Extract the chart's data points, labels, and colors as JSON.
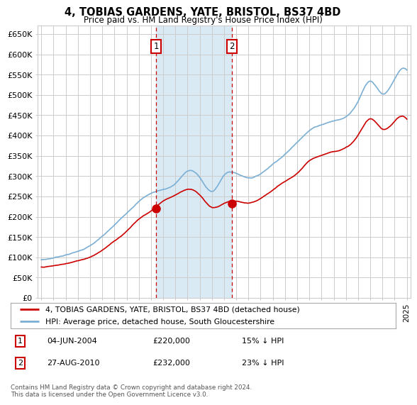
{
  "title": "4, TOBIAS GARDENS, YATE, BRISTOL, BS37 4BD",
  "subtitle": "Price paid vs. HM Land Registry's House Price Index (HPI)",
  "ylabel_ticks": [
    "£0",
    "£50K",
    "£100K",
    "£150K",
    "£200K",
    "£250K",
    "£300K",
    "£350K",
    "£400K",
    "£450K",
    "£500K",
    "£550K",
    "£600K",
    "£650K"
  ],
  "ytick_vals": [
    0,
    50000,
    100000,
    150000,
    200000,
    250000,
    300000,
    350000,
    400000,
    450000,
    500000,
    550000,
    600000,
    650000
  ],
  "ylim": [
    0,
    670000
  ],
  "sale1": {
    "date_num": 2004.42,
    "price": 220000,
    "label": "1",
    "hpi_pct": "15% ↓ HPI",
    "date_str": "04-JUN-2004"
  },
  "sale2": {
    "date_num": 2010.65,
    "price": 232000,
    "label": "2",
    "hpi_pct": "23% ↓ HPI",
    "date_str": "27-AUG-2010"
  },
  "legend1": "4, TOBIAS GARDENS, YATE, BRISTOL, BS37 4BD (detached house)",
  "legend2": "HPI: Average price, detached house, South Gloucestershire",
  "footer": "Contains HM Land Registry data © Crown copyright and database right 2024.\nThis data is licensed under the Open Government Licence v3.0.",
  "hpi_color": "#7BAFD4",
  "sold_color": "#cc0000",
  "shade_color": "#daeaf5",
  "grid_color": "#cccccc",
  "background_color": "#ffffff",
  "xlim_left": 1994.7,
  "xlim_right": 2025.3
}
